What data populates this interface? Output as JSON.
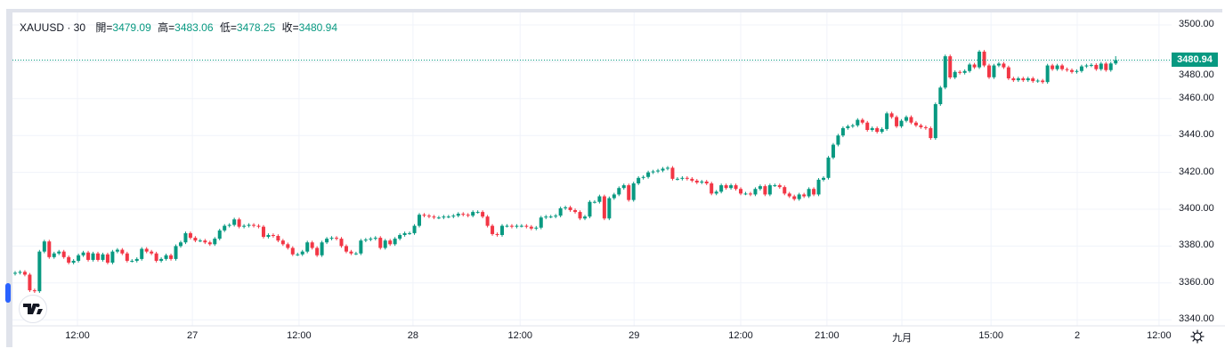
{
  "legend": {
    "symbol": "XAUUSD · 30",
    "open_label": "開=",
    "open": "3479.09",
    "high_label": "高=",
    "high": "3483.06",
    "low_label": "低=",
    "low": "3478.25",
    "close_label": "收=",
    "close": "3480.94"
  },
  "last_price_badge": "3480.94",
  "logo_text": "TV",
  "colors": {
    "up": "#089981",
    "down": "#f23645",
    "grid": "#f0f3fa",
    "frame": "#e0e3eb"
  },
  "chart_data": {
    "type": "candlestick",
    "title": "XAUUSD · 30",
    "interval_minutes": 30,
    "ylim": [
      3336,
      3513
    ],
    "y_ticks": [
      "3500.00",
      "3480.00",
      "3460.00",
      "3440.00",
      "3420.00",
      "3400.00",
      "3380.00",
      "3360.00",
      "3340.00"
    ],
    "x_ticks": [
      {
        "label": "12:00",
        "bar": 12.8
      },
      {
        "label": "27",
        "bar": 36.4
      },
      {
        "label": "12:00",
        "bar": 58.3
      },
      {
        "label": "28",
        "bar": 81.7
      },
      {
        "label": "12:00",
        "bar": 103.7
      },
      {
        "label": "29",
        "bar": 127.1
      },
      {
        "label": "12:00",
        "bar": 149.0
      },
      {
        "label": "21:00",
        "bar": 166.7
      },
      {
        "label": "九月",
        "bar": 182.1
      },
      {
        "label": "15:00",
        "bar": 200.4
      },
      {
        "label": "2",
        "bar": 218.1
      },
      {
        "label": "12:00",
        "bar": 234.9
      }
    ],
    "first_open": 3365,
    "open_rule": "open equals previous close",
    "close": [
      3365.5,
      3366,
      3364.5,
      3356,
      3355.5,
      3377,
      3382.5,
      3374,
      3376,
      3377,
      3374,
      3371,
      3372,
      3375,
      3376.5,
      3372.5,
      3376,
      3372.5,
      3375.5,
      3371,
      3377,
      3378,
      3376,
      3372,
      3372,
      3373,
      3378.5,
      3377,
      3376,
      3372,
      3373,
      3375,
      3373,
      3380,
      3382,
      3387,
      3384.5,
      3383,
      3383,
      3382,
      3381,
      3384,
      3388.5,
      3391,
      3391.5,
      3394.5,
      3390.5,
      3391,
      3391.5,
      3391,
      3390.5,
      3385,
      3386,
      3385.5,
      3383,
      3381,
      3379,
      3375.5,
      3375.5,
      3377,
      3382,
      3379,
      3375,
      3382,
      3384,
      3384.5,
      3384,
      3380,
      3377,
      3376,
      3376,
      3383,
      3383.5,
      3384,
      3384.5,
      3379,
      3383,
      3381,
      3384,
      3386,
      3387,
      3387,
      3391,
      3397,
      3396.5,
      3396,
      3395.5,
      3395.5,
      3396,
      3396,
      3396.5,
      3397.5,
      3397,
      3396.5,
      3398.5,
      3398.5,
      3396,
      3391,
      3386.5,
      3386,
      3391,
      3391,
      3390.5,
      3391,
      3391,
      3390.5,
      3389.5,
      3390,
      3395.5,
      3396,
      3396,
      3396.5,
      3400.5,
      3401,
      3399.5,
      3398.5,
      3395,
      3396,
      3404,
      3404,
      3407,
      3395,
      3406,
      3408,
      3411.5,
      3413,
      3405,
      3414,
      3417,
      3417.5,
      3420,
      3420.5,
      3421,
      3422,
      3422.5,
      3416.5,
      3416.5,
      3417,
      3416.5,
      3415.5,
      3414.5,
      3415,
      3414,
      3408.5,
      3409.5,
      3413,
      3411.5,
      3413,
      3411,
      3408.5,
      3408.5,
      3408,
      3411,
      3412.5,
      3408,
      3413,
      3413,
      3412,
      3408.5,
      3407,
      3405.5,
      3408,
      3407,
      3411,
      3408,
      3416,
      3417,
      3428,
      3435,
      3440,
      3444,
      3445,
      3445.5,
      3448.5,
      3447,
      3443,
      3444,
      3442,
      3443.5,
      3452,
      3450,
      3445,
      3448,
      3450,
      3447,
      3445.5,
      3444.5,
      3444,
      3438.6,
      3457,
      3466,
      3483,
      3471.5,
      3474.5,
      3474,
      3475,
      3478.5,
      3477,
      3485.5,
      3478,
      3471.6,
      3478,
      3479,
      3477,
      3471,
      3470,
      3471,
      3470,
      3471,
      3469.5,
      3469.8,
      3469,
      3478,
      3476,
      3478,
      3476,
      3475.5,
      3474.5,
      3475,
      3477.5,
      3478,
      3478.3,
      3476,
      3479,
      3475.5,
      3479.09,
      3480.94
    ],
    "last_candle": {
      "open": 3479.09,
      "high": 3483.06,
      "low": 3478.25,
      "close": 3480.94
    },
    "last_price": 3480.94
  }
}
